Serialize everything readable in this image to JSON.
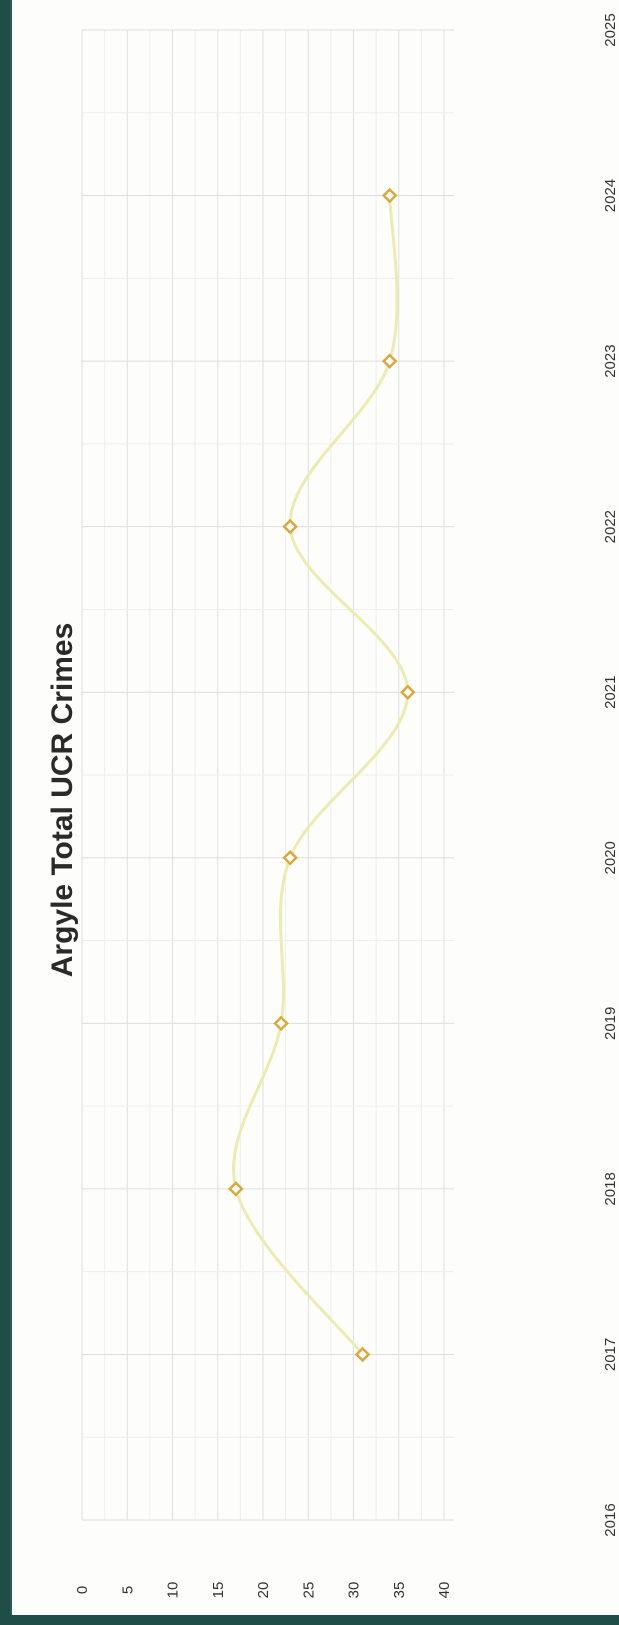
{
  "chart_data": {
    "type": "line",
    "title": "Argyle Total UCR Crimes",
    "xlabel": "",
    "ylabel": "",
    "x": [
      2017,
      2018,
      2019,
      2020,
      2021,
      2022,
      2023,
      2024
    ],
    "series": [
      {
        "values": [
          31,
          17,
          22,
          23,
          36,
          23,
          34,
          34
        ]
      }
    ],
    "xlim": [
      2016,
      2025
    ],
    "ylim": [
      0,
      40
    ],
    "x_ticks": [
      2016,
      2017,
      2018,
      2019,
      2020,
      2021,
      2022,
      2023,
      2024,
      2025
    ],
    "y_ticks": [
      0,
      5,
      10,
      15,
      20,
      25,
      30,
      35,
      40
    ],
    "grid": true,
    "smooth": true,
    "orientation": "rotated-90-ccw",
    "colors": {
      "line": "#ecebb0",
      "marker": "#d9a93a",
      "grid": "#dedede"
    }
  }
}
